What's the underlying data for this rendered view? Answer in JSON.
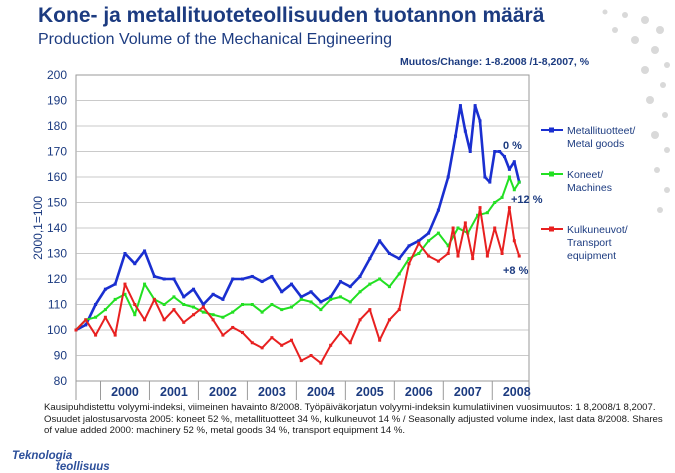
{
  "header": {
    "title": "Kone- ja metallituoteteollisuuden tuotannon määrä",
    "subtitle": "Production Volume of the Mechanical Engineering",
    "change_note": "Muutos/Change: 1-8.2008 /1-8,2007, %"
  },
  "footnote": {
    "text": "Kausipuhdistettu volyymi-indeksi, viimeinen havainto 8/2008. Työpäiväkorjatun volyymi-indeksin kumulatiivinen vuosimuutos: 1 8,2008/1 8,2007. Osuudet jalostusarvosta 2005: koneet 52 %, metallituotteet 34 %, kulkuneuvot 14 % / Seasonally adjusted volume index, last data 8/2008. Shares of value added 2000: machinery 52 %, metal goods 34 %, transport equipment 14 %."
  },
  "logo": {
    "line1": "Teknologia",
    "line2": "teollisuus"
  },
  "colors": {
    "metal": "#1a2fd0",
    "machines": "#22e022",
    "transport": "#e82020",
    "text": "#1c3b80"
  },
  "chart_data": {
    "type": "line",
    "ylabel": "2000,1=100",
    "ylim": [
      80,
      200
    ],
    "yticks": [
      "200",
      "190",
      "180",
      "170",
      "160",
      "150",
      "140",
      "130",
      "120",
      "110",
      "100",
      "90",
      "80"
    ],
    "xlim": [
      1999.5,
      2008.75
    ],
    "xticks": [
      "2000",
      "2001",
      "2002",
      "2003",
      "2004",
      "2005",
      "2006",
      "2007",
      "2008"
    ],
    "grid": true,
    "legend_position": "right",
    "annotations": [
      {
        "series": "Metallituotteet/ Metal goods",
        "text": "0 %"
      },
      {
        "series": "Koneet/ Machines",
        "text": "+12 %"
      },
      {
        "series": "Kulkuneuvot/ Transport equipment",
        "text": "+8 %"
      }
    ],
    "series": [
      {
        "name": "Metallituotteet/ Metal goods",
        "legend_lines": [
          "Metallituotteet/",
          "Metal goods"
        ],
        "color": "#1a2fd0",
        "points": [
          [
            1999.5,
            100
          ],
          [
            1999.7,
            102
          ],
          [
            1999.9,
            110
          ],
          [
            2000.1,
            116
          ],
          [
            2000.3,
            118
          ],
          [
            2000.5,
            130
          ],
          [
            2000.7,
            126
          ],
          [
            2000.9,
            131
          ],
          [
            2001.1,
            121
          ],
          [
            2001.3,
            120
          ],
          [
            2001.5,
            120
          ],
          [
            2001.7,
            113
          ],
          [
            2001.9,
            116
          ],
          [
            2002.1,
            110
          ],
          [
            2002.3,
            114
          ],
          [
            2002.5,
            112
          ],
          [
            2002.7,
            120
          ],
          [
            2002.9,
            120
          ],
          [
            2003.1,
            121
          ],
          [
            2003.3,
            119
          ],
          [
            2003.5,
            121
          ],
          [
            2003.7,
            115
          ],
          [
            2003.9,
            118
          ],
          [
            2004.1,
            113
          ],
          [
            2004.3,
            115
          ],
          [
            2004.5,
            111
          ],
          [
            2004.7,
            113
          ],
          [
            2004.9,
            119
          ],
          [
            2005.1,
            117
          ],
          [
            2005.3,
            121
          ],
          [
            2005.5,
            128
          ],
          [
            2005.7,
            135
          ],
          [
            2005.9,
            130
          ],
          [
            2006.1,
            128
          ],
          [
            2006.3,
            133
          ],
          [
            2006.5,
            135
          ],
          [
            2006.7,
            138
          ],
          [
            2006.9,
            147
          ],
          [
            2007.1,
            160
          ],
          [
            2007.25,
            176
          ],
          [
            2007.35,
            188
          ],
          [
            2007.45,
            178
          ],
          [
            2007.55,
            170
          ],
          [
            2007.65,
            188
          ],
          [
            2007.75,
            182
          ],
          [
            2007.85,
            160
          ],
          [
            2007.95,
            158
          ],
          [
            2008.05,
            170
          ],
          [
            2008.15,
            170
          ],
          [
            2008.25,
            168
          ],
          [
            2008.35,
            163
          ],
          [
            2008.45,
            166
          ],
          [
            2008.55,
            158
          ]
        ]
      },
      {
        "name": "Koneet/ Machines",
        "legend_lines": [
          "Koneet/",
          "Machines"
        ],
        "color": "#22e022",
        "points": [
          [
            1999.5,
            100
          ],
          [
            1999.7,
            104
          ],
          [
            1999.9,
            105
          ],
          [
            2000.1,
            108
          ],
          [
            2000.3,
            112
          ],
          [
            2000.5,
            114
          ],
          [
            2000.7,
            106
          ],
          [
            2000.9,
            118
          ],
          [
            2001.1,
            112
          ],
          [
            2001.3,
            110
          ],
          [
            2001.5,
            113
          ],
          [
            2001.7,
            110
          ],
          [
            2001.9,
            109
          ],
          [
            2002.1,
            107
          ],
          [
            2002.3,
            106
          ],
          [
            2002.5,
            105
          ],
          [
            2002.7,
            107
          ],
          [
            2002.9,
            110
          ],
          [
            2003.1,
            110
          ],
          [
            2003.3,
            107
          ],
          [
            2003.5,
            110
          ],
          [
            2003.7,
            108
          ],
          [
            2003.9,
            109
          ],
          [
            2004.1,
            112
          ],
          [
            2004.3,
            111
          ],
          [
            2004.5,
            108
          ],
          [
            2004.7,
            112
          ],
          [
            2004.9,
            113
          ],
          [
            2005.1,
            111
          ],
          [
            2005.3,
            115
          ],
          [
            2005.5,
            118
          ],
          [
            2005.7,
            120
          ],
          [
            2005.9,
            117
          ],
          [
            2006.1,
            122
          ],
          [
            2006.3,
            128
          ],
          [
            2006.5,
            130
          ],
          [
            2006.7,
            135
          ],
          [
            2006.9,
            138
          ],
          [
            2007.1,
            133
          ],
          [
            2007.3,
            140
          ],
          [
            2007.5,
            138
          ],
          [
            2007.7,
            145
          ],
          [
            2007.9,
            146
          ],
          [
            2008.05,
            150
          ],
          [
            2008.2,
            152
          ],
          [
            2008.35,
            160
          ],
          [
            2008.45,
            155
          ],
          [
            2008.55,
            158
          ]
        ]
      },
      {
        "name": "Kulkuneuvot/ Transport equipment",
        "legend_lines": [
          "Kulkuneuvot/",
          "Transport",
          "equipment"
        ],
        "color": "#e82020",
        "points": [
          [
            1999.5,
            100
          ],
          [
            1999.7,
            104
          ],
          [
            1999.9,
            98
          ],
          [
            2000.1,
            105
          ],
          [
            2000.3,
            98
          ],
          [
            2000.5,
            118
          ],
          [
            2000.7,
            110
          ],
          [
            2000.9,
            104
          ],
          [
            2001.1,
            112
          ],
          [
            2001.3,
            104
          ],
          [
            2001.5,
            108
          ],
          [
            2001.7,
            103
          ],
          [
            2001.9,
            106
          ],
          [
            2002.1,
            109
          ],
          [
            2002.3,
            104
          ],
          [
            2002.5,
            98
          ],
          [
            2002.7,
            101
          ],
          [
            2002.9,
            99
          ],
          [
            2003.1,
            95
          ],
          [
            2003.3,
            93
          ],
          [
            2003.5,
            97
          ],
          [
            2003.7,
            94
          ],
          [
            2003.9,
            96
          ],
          [
            2004.1,
            88
          ],
          [
            2004.3,
            90
          ],
          [
            2004.5,
            87
          ],
          [
            2004.7,
            94
          ],
          [
            2004.9,
            99
          ],
          [
            2005.1,
            95
          ],
          [
            2005.3,
            104
          ],
          [
            2005.5,
            108
          ],
          [
            2005.7,
            96
          ],
          [
            2005.9,
            104
          ],
          [
            2006.1,
            108
          ],
          [
            2006.3,
            126
          ],
          [
            2006.5,
            134
          ],
          [
            2006.7,
            129
          ],
          [
            2006.9,
            127
          ],
          [
            2007.1,
            130
          ],
          [
            2007.2,
            140
          ],
          [
            2007.3,
            129
          ],
          [
            2007.45,
            142
          ],
          [
            2007.6,
            128
          ],
          [
            2007.75,
            148
          ],
          [
            2007.9,
            129
          ],
          [
            2008.05,
            140
          ],
          [
            2008.2,
            130
          ],
          [
            2008.35,
            148
          ],
          [
            2008.45,
            135
          ],
          [
            2008.55,
            129
          ]
        ]
      }
    ]
  }
}
